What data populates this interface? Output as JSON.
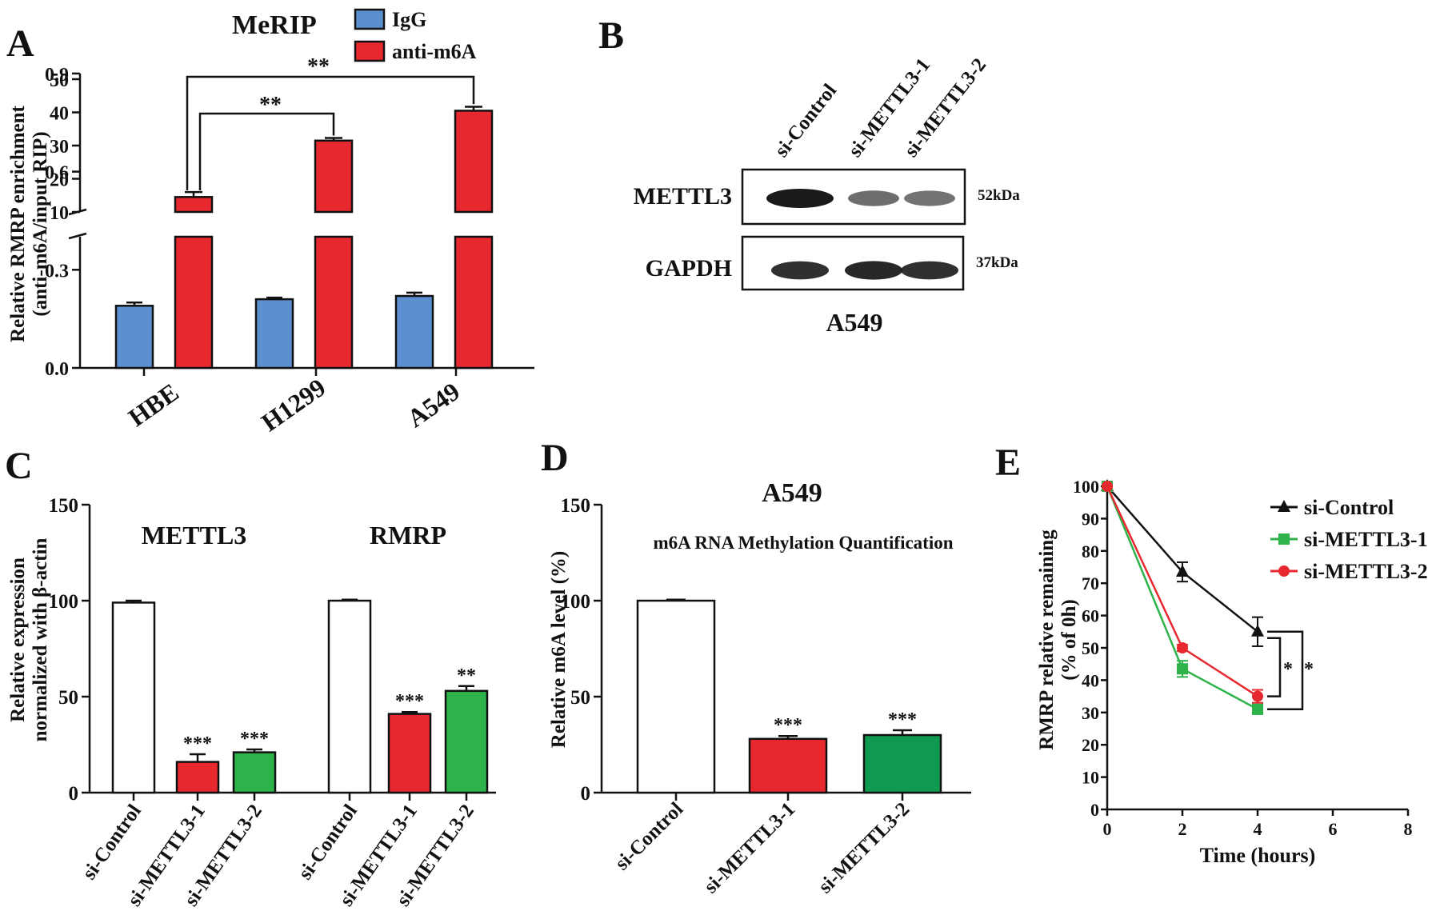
{
  "panel_labels": {
    "a": "A",
    "b": "B",
    "c": "C",
    "d": "D",
    "e": "E"
  },
  "panel_a": {
    "title": "MeRIP",
    "ylabel_line1": "Relative RMRP enrichment",
    "ylabel_line2": "(anti-m6A/input RIP)",
    "sig_1": "**",
    "sig_2": "**"
  },
  "panel_b": {
    "lanes": [
      "si-Control",
      "si-METTL3-1",
      "si-METTL3-2"
    ],
    "bands": [
      {
        "name": "METTL3",
        "size": "52kDa",
        "intensity": [
          1.0,
          0.45,
          0.4
        ]
      },
      {
        "name": "GAPDH",
        "size": "37kDa",
        "intensity": [
          0.85,
          0.9,
          0.85
        ]
      }
    ],
    "cell_line": "A549"
  },
  "panel_c": {
    "ylabel_line1": "Relative expression",
    "ylabel_line2": "normalized with β-actin"
  },
  "panel_d": {
    "title": "A549",
    "subtitle": "m6A RNA Methylation Quantification"
  },
  "panel_e": {
    "sig_1": "*",
    "sig_2": "*"
  },
  "chart_data": [
    {
      "type": "bar",
      "panel": "A",
      "title": "MeRIP",
      "categories": [
        "HBE",
        "H1299",
        "A549"
      ],
      "series": [
        {
          "name": "IgG",
          "color": "#5b8fd0",
          "values": [
            0.19,
            0.21,
            0.22
          ],
          "errors": [
            0.01,
            0.005,
            0.01
          ]
        },
        {
          "name": "anti-m6A",
          "color": "#e8282f",
          "values": [
            14.5,
            31.5,
            40.5
          ],
          "errors": [
            1.5,
            0.8,
            1.2
          ]
        }
      ],
      "ylabel": "Relative RMRP enrichment (anti-m6A/input RIP)",
      "axis_break": true,
      "lower_ticks": [
        "0.0",
        "0.3",
        "0.6",
        "0.9"
      ],
      "lower_range": [
        0,
        1.0
      ],
      "upper_ticks": [
        "10",
        "20",
        "30",
        "40",
        "50"
      ],
      "upper_range": [
        10,
        50
      ],
      "significance": [
        {
          "from": "HBE",
          "to": "H1299",
          "label": "**"
        },
        {
          "from": "HBE",
          "to": "A549",
          "label": "**"
        }
      ]
    },
    {
      "type": "bar",
      "panel": "C",
      "groups": [
        {
          "name": "METTL3",
          "categories": [
            "si-Control",
            "si-METTL3-1",
            "si-METTL3-2"
          ],
          "values": [
            99,
            16,
            21
          ],
          "errors": [
            1,
            4,
            1.5
          ],
          "colors": [
            "#ffffff",
            "#e8282f",
            "#2db34a"
          ],
          "sig": [
            "",
            "***",
            "***"
          ]
        },
        {
          "name": "RMRP",
          "categories": [
            "si-Control",
            "si-METTL3-1",
            "si-METTL3-2"
          ],
          "values": [
            100,
            41,
            53
          ],
          "errors": [
            0.5,
            1,
            2.5
          ],
          "colors": [
            "#ffffff",
            "#e8282f",
            "#2db34a"
          ],
          "sig": [
            "",
            "***",
            "**"
          ]
        }
      ],
      "ylabel": "Relative expression normalized with β-actin",
      "yticks": [
        "0",
        "50",
        "100",
        "150"
      ],
      "ylim": [
        0,
        150
      ]
    },
    {
      "type": "bar",
      "panel": "D",
      "title": "A549",
      "subtitle": "m6A RNA Methylation Quantification",
      "categories": [
        "si-Control",
        "si-METTL3-1",
        "si-METTL3-2"
      ],
      "values": [
        100,
        28,
        30
      ],
      "errors": [
        0.5,
        1.5,
        2.5
      ],
      "colors": [
        "#ffffff",
        "#e8282f",
        "#0f9a50"
      ],
      "sig": [
        "",
        "***",
        "***"
      ],
      "ylabel": "Relative m6A level (%)",
      "yticks": [
        "0",
        "50",
        "100",
        "150"
      ],
      "ylim": [
        0,
        150
      ]
    },
    {
      "type": "line",
      "panel": "E",
      "x": [
        0,
        2,
        4
      ],
      "series": [
        {
          "name": "si-Control",
          "color": "#111111",
          "marker": "triangle",
          "values": [
            100,
            73.5,
            55
          ],
          "errors": [
            0,
            3,
            4.5
          ]
        },
        {
          "name": "si-METTL3-1",
          "color": "#2db34a",
          "marker": "square",
          "values": [
            100,
            43.5,
            31
          ],
          "errors": [
            0,
            2.5,
            1.5
          ]
        },
        {
          "name": "si-METTL3-2",
          "color": "#e8282f",
          "marker": "circle",
          "values": [
            100,
            50,
            35
          ],
          "errors": [
            0,
            1,
            2
          ]
        }
      ],
      "xlabel": "Time (hours)",
      "ylabel": "RMRP relative remaining (% of 0h)",
      "xticks": [
        "0",
        "2",
        "4",
        "6",
        "8"
      ],
      "xlim": [
        0,
        8
      ],
      "yticks": [
        "0",
        "10",
        "20",
        "30",
        "40",
        "50",
        "60",
        "70",
        "80",
        "90",
        "100"
      ],
      "ylim": [
        0,
        100
      ],
      "legend_position": "top-right"
    }
  ]
}
